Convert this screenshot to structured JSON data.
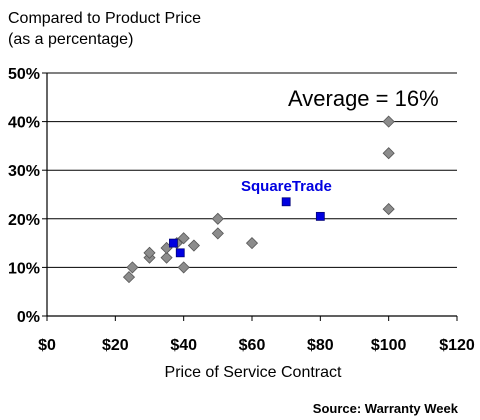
{
  "chart_data": {
    "type": "scatter",
    "title_lines": [
      "Compared to Product Price",
      "(as a percentage)"
    ],
    "xlabel": "Price of Service Contract",
    "annotation": "Average = 16%",
    "source": "Source: Warranty Week",
    "xlim": [
      0,
      120
    ],
    "ylim": [
      0,
      50
    ],
    "x_ticks": [
      "$0",
      "$20",
      "$40",
      "$60",
      "$80",
      "$100",
      "$120"
    ],
    "x_tick_values": [
      0,
      20,
      40,
      60,
      80,
      100,
      120
    ],
    "y_ticks": [
      "0%",
      "10%",
      "20%",
      "30%",
      "40%",
      "50%"
    ],
    "y_tick_values": [
      0,
      10,
      20,
      30,
      40,
      50
    ],
    "grid": "horizontal",
    "series": [
      {
        "name": "",
        "marker": "diamond",
        "color": "#8c8c8c",
        "points": [
          {
            "x": 24,
            "y": 8
          },
          {
            "x": 25,
            "y": 10
          },
          {
            "x": 30,
            "y": 12
          },
          {
            "x": 30,
            "y": 13
          },
          {
            "x": 35,
            "y": 12
          },
          {
            "x": 35,
            "y": 14
          },
          {
            "x": 38,
            "y": 15
          },
          {
            "x": 40,
            "y": 16
          },
          {
            "x": 40,
            "y": 10
          },
          {
            "x": 43,
            "y": 14.5
          },
          {
            "x": 50,
            "y": 20
          },
          {
            "x": 50,
            "y": 17
          },
          {
            "x": 60,
            "y": 15
          },
          {
            "x": 100,
            "y": 40
          },
          {
            "x": 100,
            "y": 33.5
          },
          {
            "x": 100,
            "y": 22
          }
        ]
      },
      {
        "name": "SquareTrade",
        "marker": "square",
        "color": "#0000e0",
        "points": [
          {
            "x": 37,
            "y": 15
          },
          {
            "x": 39,
            "y": 13
          },
          {
            "x": 70,
            "y": 23.5
          },
          {
            "x": 80,
            "y": 20.5
          }
        ]
      }
    ]
  }
}
